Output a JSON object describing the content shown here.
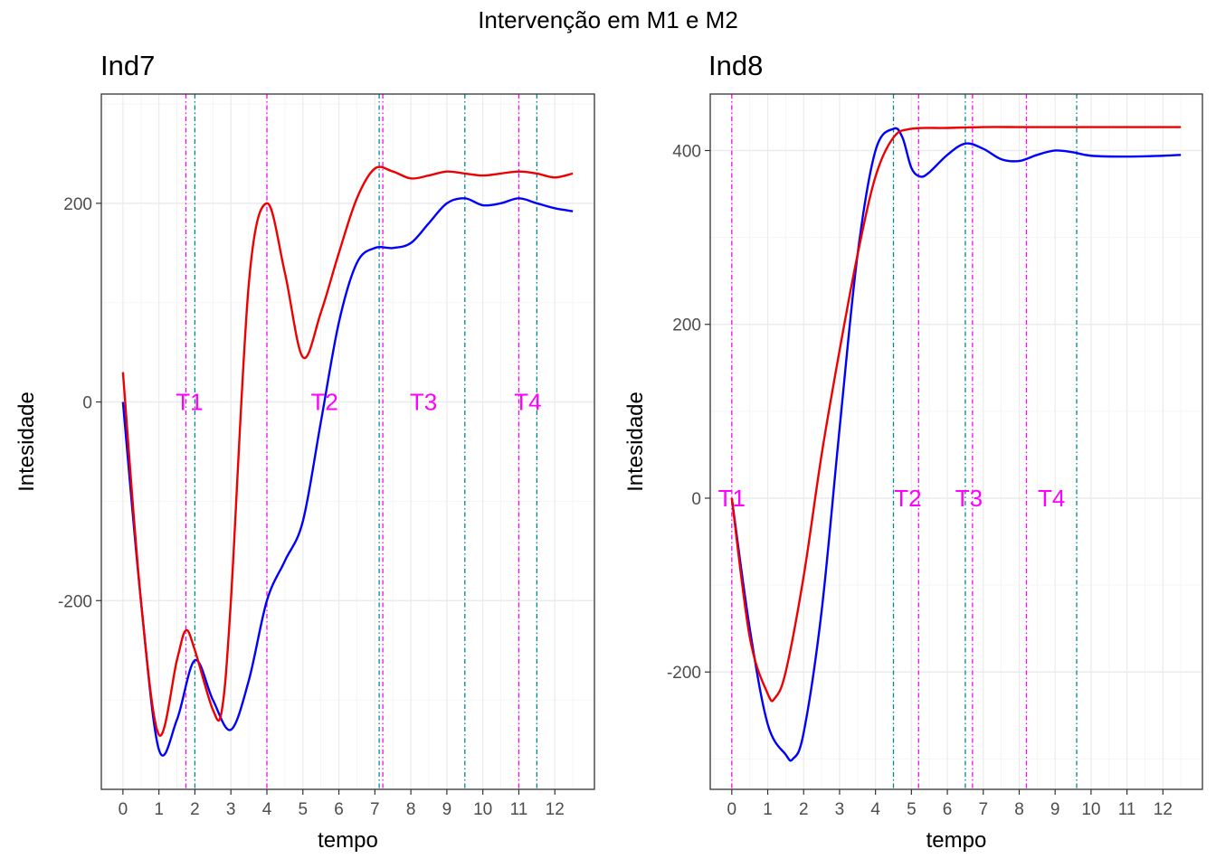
{
  "title": "Intervenção em M1 e M2",
  "colors": {
    "series1": "#0000ff",
    "series2": "#ee0000",
    "vline_a": "#ff00ff",
    "vline_b": "#008b8b",
    "label": "#ff00ff",
    "grid_major": "#ebebeb",
    "grid_minor": "#f5f5f5",
    "border": "#333333"
  },
  "chart_data": [
    {
      "type": "line",
      "title": "Ind7",
      "xlabel": "tempo",
      "ylabel": "Intesidade",
      "xlim": [
        -0.6,
        13.1
      ],
      "ylim": [
        -390,
        310
      ],
      "xticks": [
        0,
        1,
        2,
        3,
        4,
        5,
        6,
        7,
        8,
        9,
        10,
        11,
        12
      ],
      "yticks": [
        -200,
        0,
        200
      ],
      "grid": true,
      "series": [
        {
          "color": "blue",
          "x": [
            0,
            0.5,
            1,
            1.5,
            2,
            2.5,
            3,
            3.5,
            4,
            4.5,
            5,
            5.5,
            6,
            6.5,
            7,
            7.5,
            8,
            8.5,
            9,
            9.5,
            10,
            10.5,
            11,
            11.5,
            12,
            12.5
          ],
          "y": [
            0,
            -200,
            -350,
            -320,
            -260,
            -300,
            -330,
            -280,
            -200,
            -160,
            -120,
            -20,
            80,
            140,
            155,
            155,
            160,
            180,
            200,
            205,
            198,
            200,
            205,
            200,
            195,
            192
          ]
        },
        {
          "color": "red",
          "x": [
            0,
            0.5,
            1,
            1.5,
            1.75,
            2,
            2.5,
            2.75,
            3,
            3.5,
            4,
            4.5,
            5,
            5.5,
            6,
            6.5,
            7,
            7.5,
            8,
            8.5,
            9,
            9.5,
            10,
            10.5,
            11,
            11.5,
            12,
            12.5
          ],
          "y": [
            30,
            -200,
            -335,
            -260,
            -230,
            -250,
            -310,
            -310,
            -200,
            120,
            200,
            130,
            45,
            90,
            150,
            205,
            235,
            232,
            225,
            228,
            232,
            230,
            228,
            230,
            232,
            230,
            226,
            230
          ]
        }
      ],
      "vlines": [
        {
          "x": 1.75,
          "color": "magenta"
        },
        {
          "x": 2.0,
          "color": "teal"
        },
        {
          "x": 4.0,
          "color": "magenta"
        },
        {
          "x": 7.12,
          "color": "teal"
        },
        {
          "x": 7.22,
          "color": "magenta"
        },
        {
          "x": 9.5,
          "color": "teal"
        },
        {
          "x": 11.0,
          "color": "magenta"
        },
        {
          "x": 11.5,
          "color": "teal"
        }
      ],
      "labels": [
        {
          "text": "T1",
          "x": 1.85,
          "y": 0
        },
        {
          "text": "T2",
          "x": 5.6,
          "y": 0
        },
        {
          "text": "T3",
          "x": 8.35,
          "y": 0
        },
        {
          "text": "T4",
          "x": 11.25,
          "y": 0
        }
      ]
    },
    {
      "type": "line",
      "title": "Ind8",
      "xlabel": "tempo",
      "ylabel": "Intesidade",
      "xlim": [
        -0.6,
        13.1
      ],
      "ylim": [
        -335,
        465
      ],
      "xticks": [
        0,
        1,
        2,
        3,
        4,
        5,
        6,
        7,
        8,
        9,
        10,
        11,
        12
      ],
      "yticks": [
        -200,
        0,
        200,
        400
      ],
      "grid": true,
      "series": [
        {
          "color": "blue",
          "x": [
            0,
            0.5,
            1,
            1.5,
            1.7,
            2,
            2.5,
            3,
            3.5,
            4,
            4.5,
            4.75,
            5,
            5.25,
            5.5,
            6,
            6.5,
            7,
            7.5,
            8,
            8.5,
            9,
            9.5,
            10,
            11,
            12,
            12.5
          ],
          "y": [
            0,
            -150,
            -260,
            -295,
            -300,
            -270,
            -130,
            80,
            280,
            400,
            425,
            415,
            380,
            370,
            375,
            395,
            408,
            402,
            390,
            388,
            395,
            400,
            398,
            394,
            393,
            394,
            395
          ]
        },
        {
          "color": "red",
          "x": [
            0,
            0.5,
            1,
            1.2,
            1.5,
            2,
            2.5,
            3,
            3.5,
            4,
            4.5,
            5,
            6,
            7,
            8,
            9,
            10,
            11,
            12,
            12.5
          ],
          "y": [
            0,
            -160,
            -225,
            -230,
            -200,
            -90,
            50,
            170,
            280,
            370,
            415,
            425,
            426,
            427,
            427,
            427,
            427,
            427,
            427,
            427
          ]
        }
      ],
      "vlines": [
        {
          "x": 0.0,
          "color": "magenta"
        },
        {
          "x": 4.5,
          "color": "teal"
        },
        {
          "x": 5.2,
          "color": "magenta"
        },
        {
          "x": 6.5,
          "color": "teal"
        },
        {
          "x": 6.7,
          "color": "magenta"
        },
        {
          "x": 8.2,
          "color": "magenta"
        },
        {
          "x": 9.6,
          "color": "teal"
        }
      ],
      "labels": [
        {
          "text": "T1",
          "x": 0.0,
          "y": 0
        },
        {
          "text": "T2",
          "x": 4.9,
          "y": 0
        },
        {
          "text": "T3",
          "x": 6.6,
          "y": 0
        },
        {
          "text": "T4",
          "x": 8.9,
          "y": 0
        }
      ]
    }
  ]
}
